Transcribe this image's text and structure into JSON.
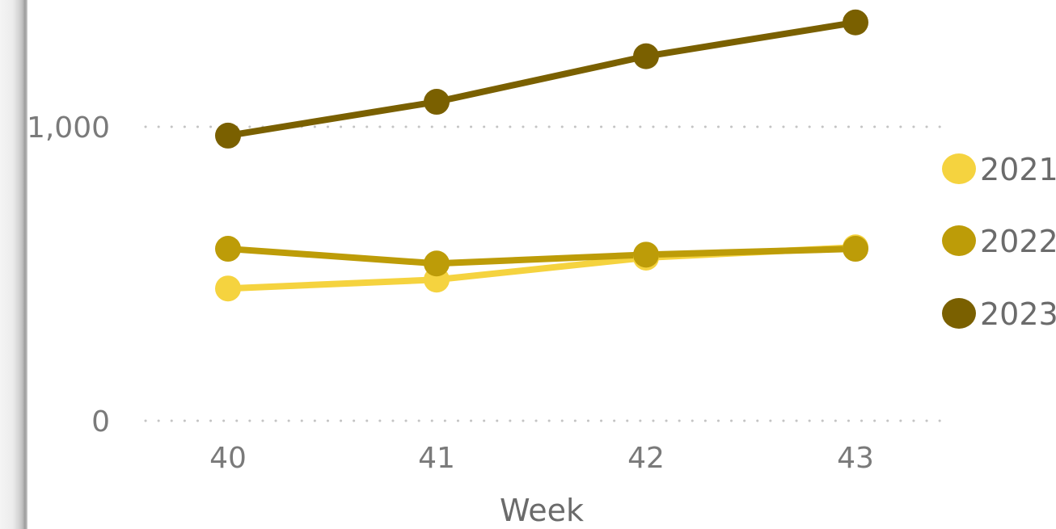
{
  "chart_data": {
    "type": "line",
    "xlabel": "Week",
    "ylabel": "",
    "x": [
      40,
      41,
      42,
      43
    ],
    "x_tick_labels": [
      "40",
      "41",
      "42",
      "43"
    ],
    "y_tick_values": [
      0,
      1000
    ],
    "y_tick_labels": [
      "0",
      "1,000"
    ],
    "ylim": [
      0,
      1380
    ],
    "grid": "horizontal-dotted",
    "legend_position": "right",
    "series": [
      {
        "name": "2021",
        "color": "#F5D33F",
        "values": [
          450,
          480,
          555,
          590
        ]
      },
      {
        "name": "2022",
        "color": "#BD9C08",
        "values": [
          585,
          535,
          565,
          585
        ]
      },
      {
        "name": "2023",
        "color": "#7A6000",
        "values": [
          970,
          1085,
          1240,
          1355
        ]
      }
    ]
  }
}
